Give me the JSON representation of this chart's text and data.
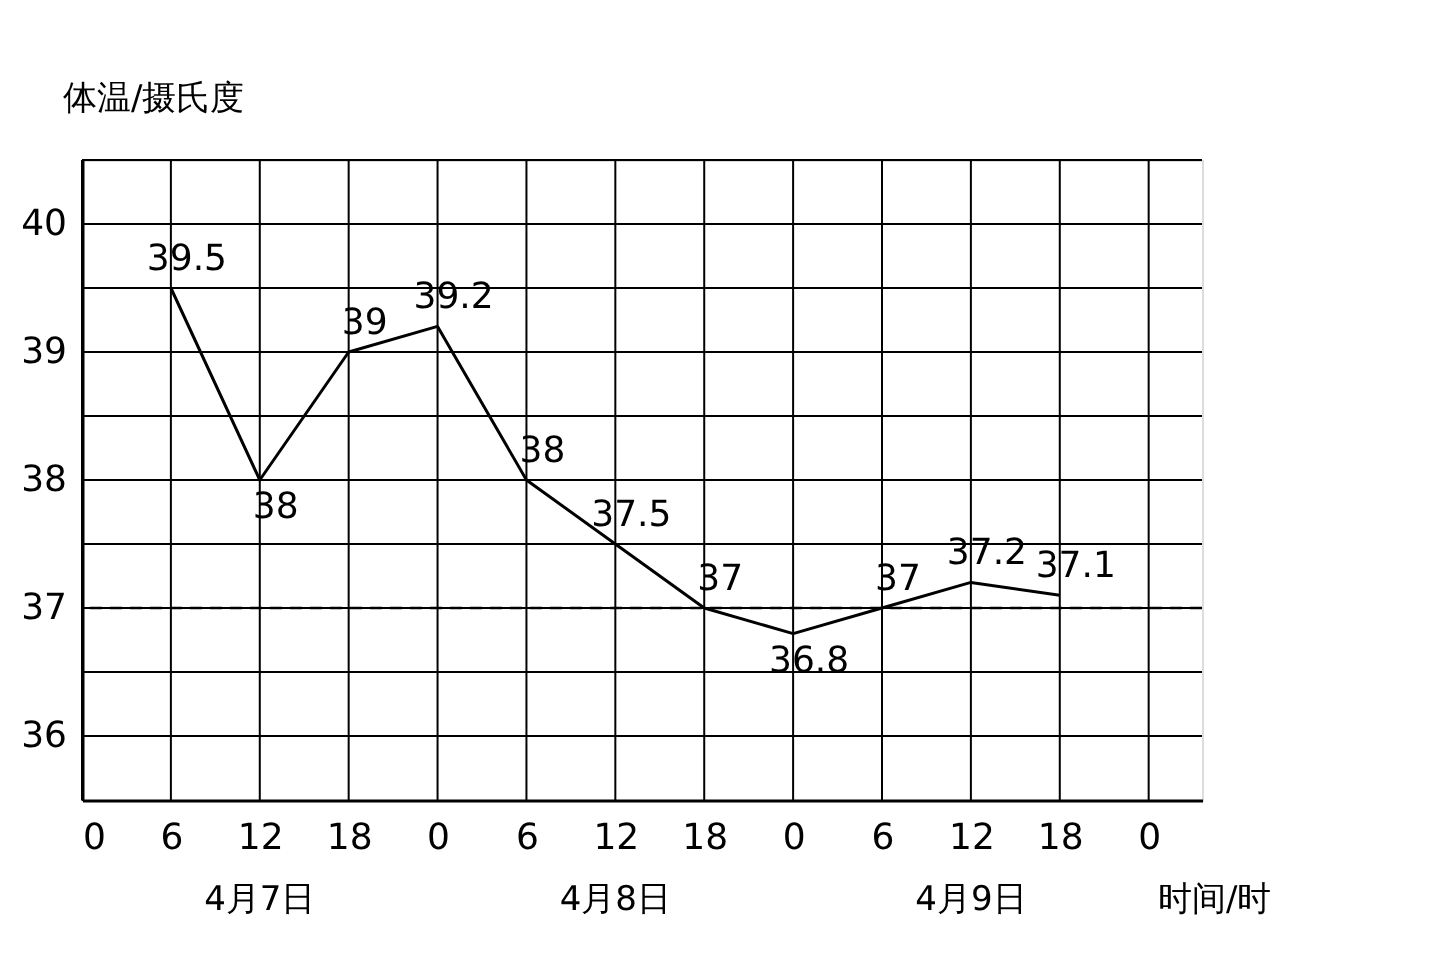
{
  "chart_data": {
    "type": "line",
    "xlabel": "时间/时",
    "ylabel": "体温/摄氏度",
    "categories": [
      "0",
      "6",
      "12",
      "18",
      "0",
      "6",
      "12",
      "18",
      "0",
      "6",
      "12",
      "18",
      "0"
    ],
    "series": [
      {
        "color": "#000000",
        "values": [
          null,
          39.5,
          38,
          39,
          39.2,
          38,
          37.5,
          37,
          36.8,
          37,
          37.2,
          37.1,
          null
        ]
      }
    ],
    "ylim": [
      35.5,
      40.5
    ],
    "yticks": [
      36,
      {
        "value": 36.5,
        "label": null
      },
      37,
      {
        "value": 37.5,
        "label": null
      },
      38,
      {
        "value": 38.5,
        "label": null
      },
      39,
      {
        "value": 39.5,
        "label": null
      },
      40,
      {
        "value": 40.5,
        "label": null
      }
    ],
    "grid": true,
    "data_labels": true,
    "marker": "none",
    "line_style": "solid",
    "ref_lines": [
      {
        "axis": "y",
        "value": 37,
        "line_style": "dashed",
        "color": "#000000"
      }
    ],
    "annotations": [
      "4月7日",
      "4月8日",
      "4月9日"
    ]
  }
}
